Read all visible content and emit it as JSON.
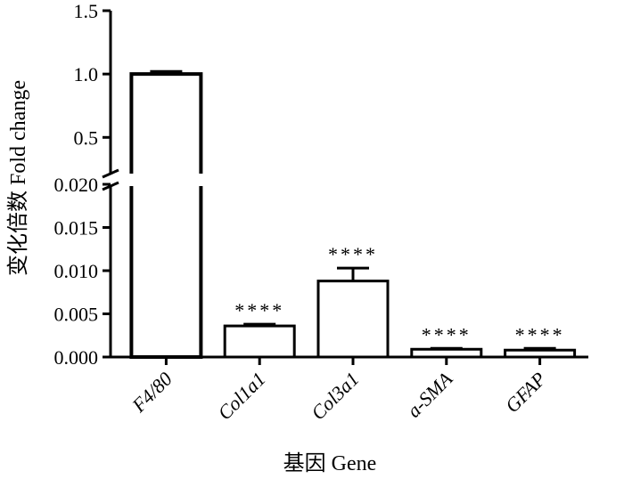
{
  "chart_data": {
    "type": "bar",
    "xlabel": "基因  Gene",
    "ylabel": "变化倍数  Fold change",
    "categories": [
      "F4/80",
      "Col1a1",
      "Col3a1",
      "a-SMA",
      "GFAP"
    ],
    "values": [
      1.0,
      0.0036,
      0.0088,
      0.0009,
      0.0008
    ],
    "errors": [
      0.02,
      0.0002,
      0.0015,
      0.0001,
      0.0002
    ],
    "significance": [
      "",
      "****",
      "****",
      "****",
      "****"
    ],
    "y_axis_break": true,
    "lower_segment": {
      "ylim": [
        0,
        0.02
      ],
      "ticks": [
        "0.000",
        "0.005",
        "0.010",
        "0.015",
        "0.020"
      ]
    },
    "upper_segment": {
      "ylim": [
        0.2,
        1.5
      ],
      "ticks": [
        "0.5",
        "1.0",
        "1.5"
      ]
    },
    "grid": false,
    "legend": "none"
  }
}
